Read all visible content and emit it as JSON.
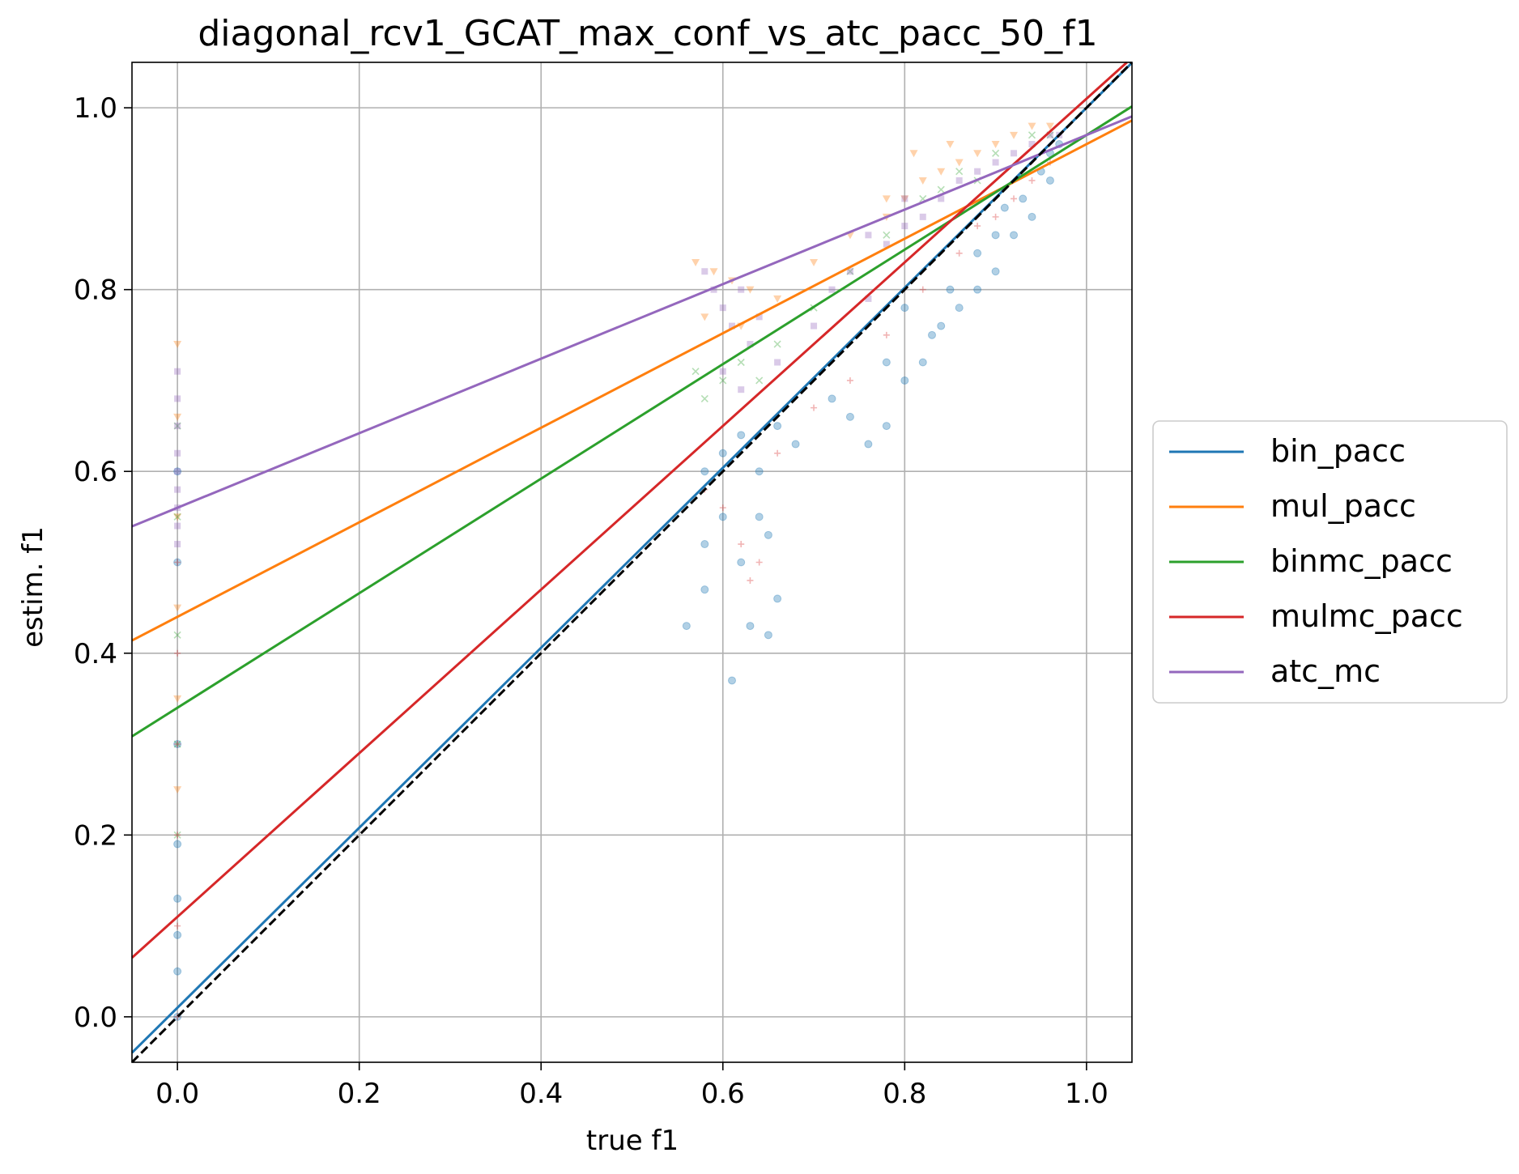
{
  "chart_data": {
    "type": "scatter",
    "title": "diagonal_rcv1_GCAT_max_conf_vs_atc_pacc_50_f1",
    "xlabel": "true f1",
    "ylabel": "estim. f1",
    "xlim": [
      -0.05,
      1.05
    ],
    "ylim": [
      -0.05,
      1.05
    ],
    "xticks": [
      0.0,
      0.2,
      0.4,
      0.6,
      0.8,
      1.0
    ],
    "yticks": [
      0.0,
      0.2,
      0.4,
      0.6,
      0.8,
      1.0
    ],
    "xtick_labels": [
      "0.0",
      "0.2",
      "0.4",
      "0.6",
      "0.8",
      "1.0"
    ],
    "ytick_labels": [
      "0.0",
      "0.2",
      "0.4",
      "0.6",
      "0.8",
      "1.0"
    ],
    "grid": true,
    "legend_position": "outside-right",
    "diagonal_reference": {
      "from": [
        -0.05,
        -0.05
      ],
      "to": [
        1.05,
        1.05
      ],
      "color": "#000000",
      "style": "dashed"
    },
    "series": [
      {
        "name": "bin_pacc",
        "color": "#1f77b4",
        "marker": "circle",
        "fit_line": {
          "slope": 0.99,
          "intercept": 0.01
        },
        "points": [
          [
            0.0,
            0.0
          ],
          [
            0.0,
            0.05
          ],
          [
            0.0,
            0.09
          ],
          [
            0.0,
            0.13
          ],
          [
            0.0,
            0.19
          ],
          [
            0.0,
            0.3
          ],
          [
            0.0,
            0.5
          ],
          [
            0.0,
            0.6
          ],
          [
            0.56,
            0.43
          ],
          [
            0.58,
            0.47
          ],
          [
            0.58,
            0.52
          ],
          [
            0.6,
            0.55
          ],
          [
            0.61,
            0.37
          ],
          [
            0.62,
            0.5
          ],
          [
            0.63,
            0.43
          ],
          [
            0.64,
            0.55
          ],
          [
            0.65,
            0.42
          ],
          [
            0.65,
            0.53
          ],
          [
            0.66,
            0.46
          ],
          [
            0.58,
            0.6
          ],
          [
            0.6,
            0.62
          ],
          [
            0.62,
            0.64
          ],
          [
            0.64,
            0.6
          ],
          [
            0.66,
            0.65
          ],
          [
            0.68,
            0.63
          ],
          [
            0.72,
            0.68
          ],
          [
            0.74,
            0.66
          ],
          [
            0.76,
            0.63
          ],
          [
            0.78,
            0.65
          ],
          [
            0.8,
            0.7
          ],
          [
            0.82,
            0.72
          ],
          [
            0.84,
            0.76
          ],
          [
            0.86,
            0.78
          ],
          [
            0.88,
            0.8
          ],
          [
            0.9,
            0.82
          ],
          [
            0.92,
            0.86
          ],
          [
            0.94,
            0.88
          ],
          [
            0.96,
            0.92
          ],
          [
            0.9,
            0.86
          ],
          [
            0.88,
            0.84
          ],
          [
            0.85,
            0.8
          ],
          [
            0.83,
            0.75
          ],
          [
            0.8,
            0.78
          ],
          [
            0.78,
            0.72
          ],
          [
            0.96,
            0.95
          ],
          [
            0.97,
            0.96
          ],
          [
            0.95,
            0.93
          ],
          [
            0.93,
            0.9
          ],
          [
            0.91,
            0.89
          ]
        ]
      },
      {
        "name": "mul_pacc",
        "color": "#ff7f0e",
        "marker": "triangle-down",
        "fit_line": {
          "slope": 0.52,
          "intercept": 0.44
        },
        "points": [
          [
            0.0,
            0.74
          ],
          [
            0.0,
            0.66
          ],
          [
            0.0,
            0.55
          ],
          [
            0.0,
            0.45
          ],
          [
            0.0,
            0.35
          ],
          [
            0.0,
            0.25
          ],
          [
            0.57,
            0.83
          ],
          [
            0.59,
            0.82
          ],
          [
            0.61,
            0.81
          ],
          [
            0.63,
            0.8
          ],
          [
            0.58,
            0.77
          ],
          [
            0.62,
            0.76
          ],
          [
            0.66,
            0.79
          ],
          [
            0.7,
            0.83
          ],
          [
            0.74,
            0.86
          ],
          [
            0.78,
            0.88
          ],
          [
            0.8,
            0.9
          ],
          [
            0.82,
            0.92
          ],
          [
            0.84,
            0.93
          ],
          [
            0.86,
            0.94
          ],
          [
            0.88,
            0.95
          ],
          [
            0.9,
            0.96
          ],
          [
            0.92,
            0.97
          ],
          [
            0.94,
            0.98
          ],
          [
            0.96,
            0.98
          ],
          [
            0.81,
            0.95
          ],
          [
            0.85,
            0.96
          ],
          [
            0.78,
            0.9
          ]
        ]
      },
      {
        "name": "binmc_pacc",
        "color": "#2ca02c",
        "marker": "x",
        "fit_line": {
          "slope": 0.63,
          "intercept": 0.34
        },
        "points": [
          [
            0.0,
            0.65
          ],
          [
            0.0,
            0.55
          ],
          [
            0.0,
            0.42
          ],
          [
            0.0,
            0.3
          ],
          [
            0.0,
            0.2
          ],
          [
            0.57,
            0.71
          ],
          [
            0.58,
            0.68
          ],
          [
            0.6,
            0.7
          ],
          [
            0.62,
            0.72
          ],
          [
            0.64,
            0.7
          ],
          [
            0.66,
            0.74
          ],
          [
            0.7,
            0.78
          ],
          [
            0.74,
            0.82
          ],
          [
            0.78,
            0.86
          ],
          [
            0.82,
            0.9
          ],
          [
            0.86,
            0.93
          ],
          [
            0.9,
            0.95
          ],
          [
            0.94,
            0.97
          ],
          [
            0.96,
            0.97
          ],
          [
            0.84,
            0.91
          ],
          [
            0.88,
            0.92
          ]
        ]
      },
      {
        "name": "mulmc_pacc",
        "color": "#d62728",
        "marker": "plus",
        "fit_line": {
          "slope": 0.9,
          "intercept": 0.11
        },
        "points": [
          [
            0.0,
            0.0
          ],
          [
            0.0,
            0.1
          ],
          [
            0.0,
            0.2
          ],
          [
            0.0,
            0.3
          ],
          [
            0.0,
            0.4
          ],
          [
            0.0,
            0.5
          ],
          [
            0.58,
            0.58
          ],
          [
            0.6,
            0.56
          ],
          [
            0.62,
            0.52
          ],
          [
            0.63,
            0.48
          ],
          [
            0.64,
            0.5
          ],
          [
            0.66,
            0.62
          ],
          [
            0.7,
            0.67
          ],
          [
            0.74,
            0.7
          ],
          [
            0.78,
            0.75
          ],
          [
            0.82,
            0.8
          ],
          [
            0.86,
            0.84
          ],
          [
            0.9,
            0.88
          ],
          [
            0.94,
            0.92
          ],
          [
            0.96,
            0.94
          ],
          [
            0.92,
            0.9
          ],
          [
            0.88,
            0.87
          ]
        ]
      },
      {
        "name": "atc_mc",
        "color": "#9467bd",
        "marker": "square",
        "fit_line": {
          "slope": 0.41,
          "intercept": 0.56
        },
        "points": [
          [
            0.0,
            0.71
          ],
          [
            0.0,
            0.68
          ],
          [
            0.0,
            0.65
          ],
          [
            0.0,
            0.62
          ],
          [
            0.0,
            0.6
          ],
          [
            0.0,
            0.58
          ],
          [
            0.0,
            0.56
          ],
          [
            0.0,
            0.54
          ],
          [
            0.0,
            0.52
          ],
          [
            0.58,
            0.82
          ],
          [
            0.59,
            0.8
          ],
          [
            0.6,
            0.78
          ],
          [
            0.61,
            0.76
          ],
          [
            0.62,
            0.8
          ],
          [
            0.63,
            0.74
          ],
          [
            0.64,
            0.77
          ],
          [
            0.6,
            0.71
          ],
          [
            0.62,
            0.69
          ],
          [
            0.66,
            0.72
          ],
          [
            0.7,
            0.76
          ],
          [
            0.72,
            0.8
          ],
          [
            0.74,
            0.82
          ],
          [
            0.76,
            0.79
          ],
          [
            0.78,
            0.85
          ],
          [
            0.8,
            0.87
          ],
          [
            0.82,
            0.88
          ],
          [
            0.84,
            0.9
          ],
          [
            0.86,
            0.92
          ],
          [
            0.88,
            0.93
          ],
          [
            0.9,
            0.94
          ],
          [
            0.92,
            0.95
          ],
          [
            0.94,
            0.96
          ],
          [
            0.96,
            0.97
          ],
          [
            0.97,
            0.97
          ],
          [
            0.76,
            0.86
          ],
          [
            0.8,
            0.9
          ]
        ]
      }
    ]
  }
}
